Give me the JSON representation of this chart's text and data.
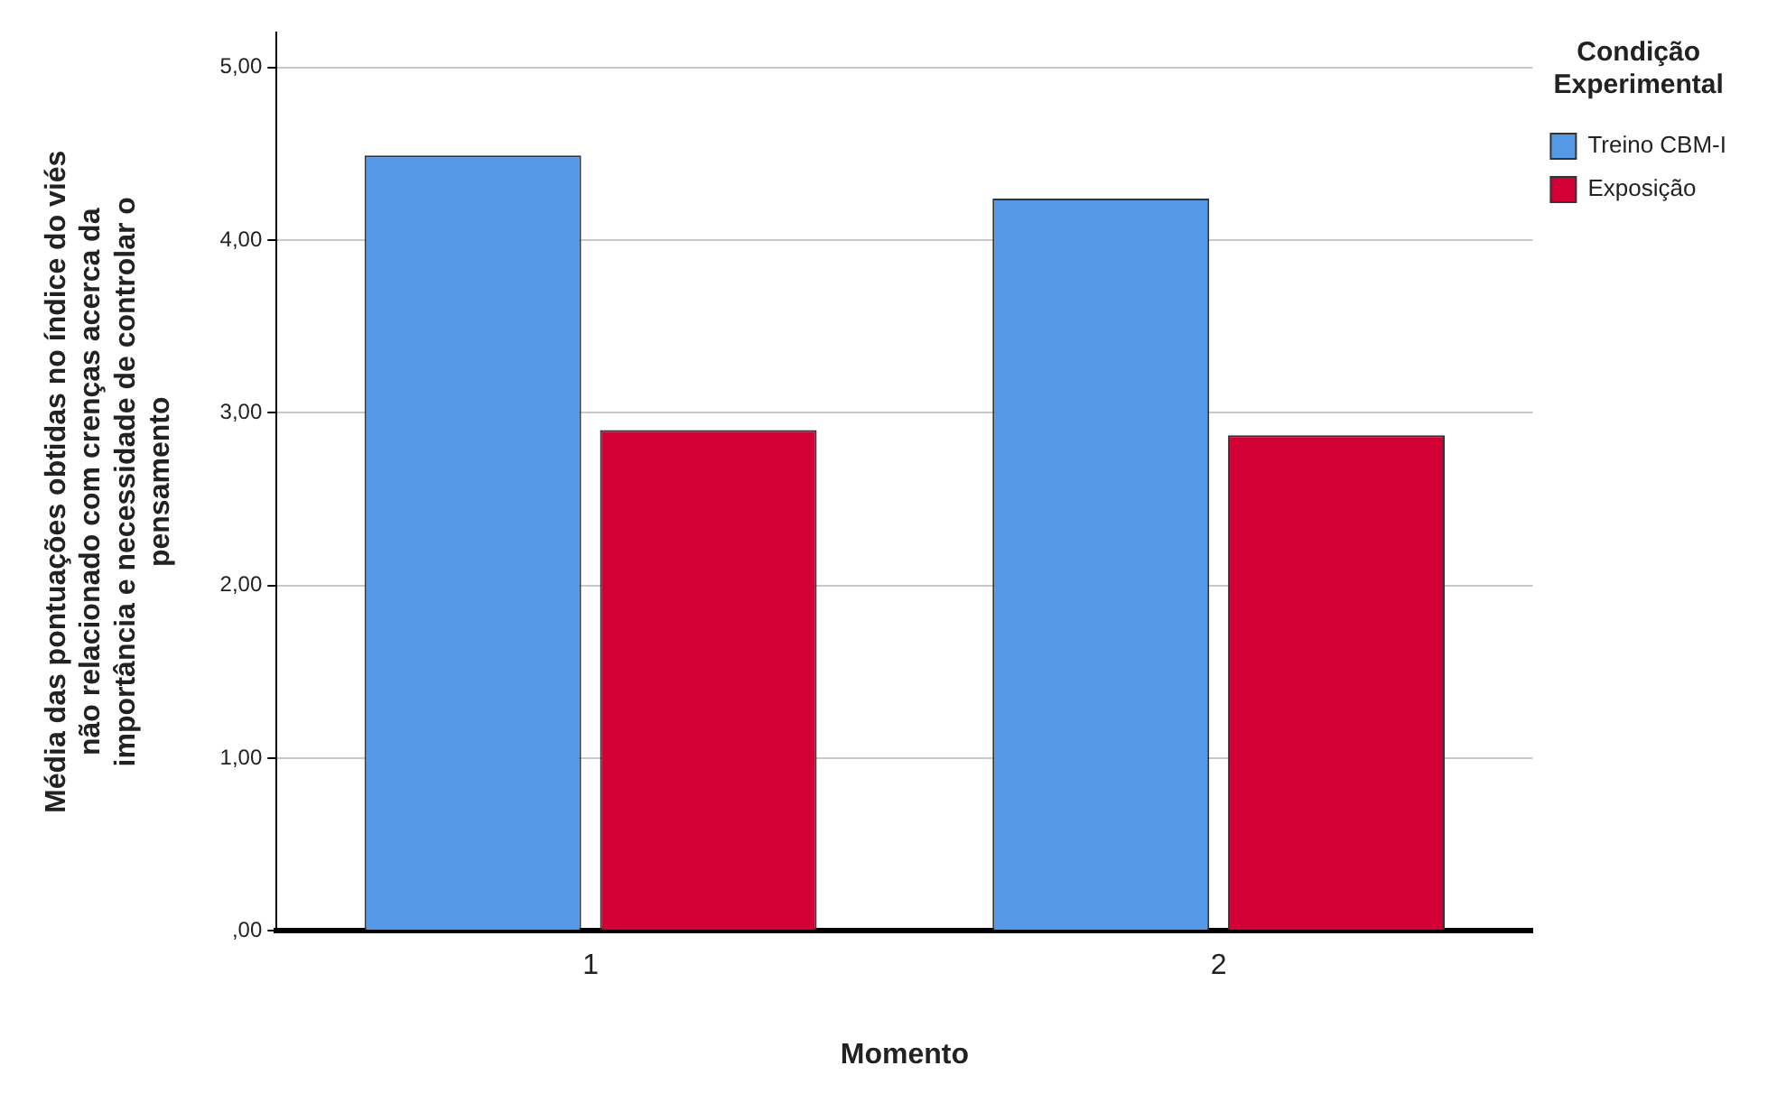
{
  "chart_data": {
    "type": "bar",
    "xlabel": "Momento",
    "ylabel": "Média das pontuações obtidas no índice do viés não relacionado com crenças acerca da importância e necessidade de controlar o pensamento",
    "legend_title": "Condição Experimental",
    "categories": [
      "1",
      "2"
    ],
    "series": [
      {
        "name": "Treino CBM-I",
        "color": "#5599e6",
        "values": [
          4.49,
          4.24
        ]
      },
      {
        "name": "Exposição",
        "color": "#d20034",
        "values": [
          2.9,
          2.87
        ]
      }
    ],
    "ylim": [
      0,
      5.2
    ],
    "yticks": [
      {
        "value": 0,
        "label": ",00"
      },
      {
        "value": 1,
        "label": "1,00"
      },
      {
        "value": 2,
        "label": "2,00"
      },
      {
        "value": 3,
        "label": "3,00"
      },
      {
        "value": 4,
        "label": "4,00"
      },
      {
        "value": 5,
        "label": "5,00"
      }
    ],
    "grid": "y",
    "legend": "top right"
  }
}
